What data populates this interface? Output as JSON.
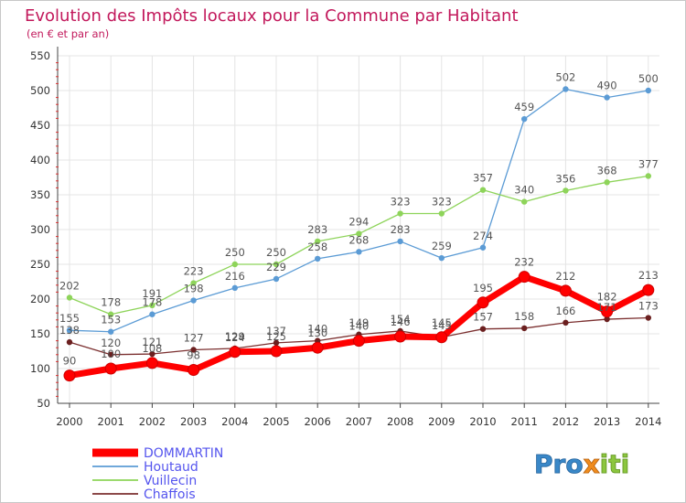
{
  "chart_data": {
    "type": "line",
    "title": "Evolution des Impôts locaux pour la Commune par Habitant",
    "subtitle": "(en € et par an)",
    "xlabel": "",
    "ylabel": "",
    "ylim": [
      50,
      550
    ],
    "yticks": [
      50,
      100,
      150,
      200,
      250,
      300,
      350,
      400,
      450,
      500,
      550
    ],
    "categories": [
      "2000",
      "2001",
      "2002",
      "2003",
      "2004",
      "2005",
      "2006",
      "2007",
      "2008",
      "2009",
      "2010",
      "2011",
      "2012",
      "2013",
      "2014"
    ],
    "series": [
      {
        "name": "Houtaud",
        "color": "#5b9bd5",
        "width": 1.3,
        "dot": "#5b9bd5",
        "labelColor": "#555555",
        "labelPos": "above",
        "values": [
          155,
          153,
          178,
          198,
          216,
          229,
          258,
          268,
          283,
          259,
          274,
          459,
          502,
          490,
          500
        ]
      },
      {
        "name": "Vuillecin",
        "color": "#8ed45a",
        "width": 1.3,
        "dot": "#8ed45a",
        "labelColor": "#555555",
        "labelPos": "above",
        "values": [
          202,
          178,
          191,
          223,
          250,
          250,
          283,
          294,
          323,
          323,
          357,
          340,
          356,
          368,
          377
        ]
      },
      {
        "name": "Chaffois",
        "color": "#7b2f2f",
        "width": 1.3,
        "dot": "#6b1f1f",
        "labelColor": "#555555",
        "labelPos": "above",
        "values": [
          138,
          120,
          121,
          127,
          129,
          137,
          140,
          149,
          154,
          145,
          157,
          158,
          166,
          171,
          173
        ]
      },
      {
        "name": "DOMMARTIN",
        "color": "#ff0000",
        "width": 7,
        "dot": "#ff0000",
        "labelColor": "#555555",
        "labelPos": "above",
        "values": [
          90,
          100,
          108,
          98,
          124,
          125,
          130,
          140,
          146,
          145,
          195,
          232,
          212,
          182,
          213
        ]
      }
    ],
    "legend": [
      {
        "name": "DOMMARTIN",
        "color": "#ff0000",
        "textColor": "#5555ee",
        "thick": true
      },
      {
        "name": "Houtaud",
        "color": "#5b9bd5",
        "textColor": "#5555ee",
        "thick": false
      },
      {
        "name": "Vuillecin",
        "color": "#8ed45a",
        "textColor": "#5555ee",
        "thick": false
      },
      {
        "name": "Chaffois",
        "color": "#7b2f2f",
        "textColor": "#5555ee",
        "thick": false
      }
    ]
  },
  "brand": {
    "part1": "Pro",
    "part2": "x",
    "part3": "iti"
  }
}
